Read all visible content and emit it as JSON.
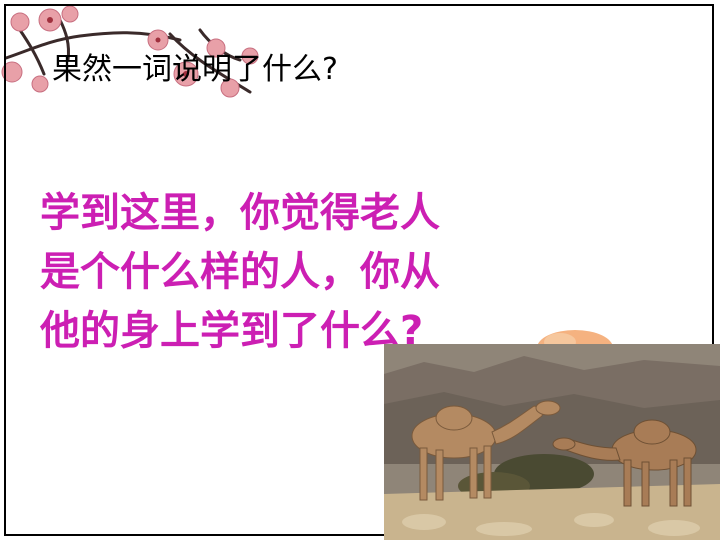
{
  "slide": {
    "question": "果然一词说明了什么?",
    "main_lines": [
      "学到这里，你觉得老人",
      "是个什么样的人，你从",
      "他的身上学到了什么?"
    ]
  },
  "colors": {
    "question_text": "#000000",
    "main_text": "#cc1fb3",
    "frame": "#000000",
    "blossom": "#e8a0a8",
    "sand": "#c9b48e"
  },
  "images": {
    "top_left": "plum-blossom-branch",
    "bottom_right": "camels-in-desert-photo",
    "sunset": "setting-sun-decoration"
  }
}
